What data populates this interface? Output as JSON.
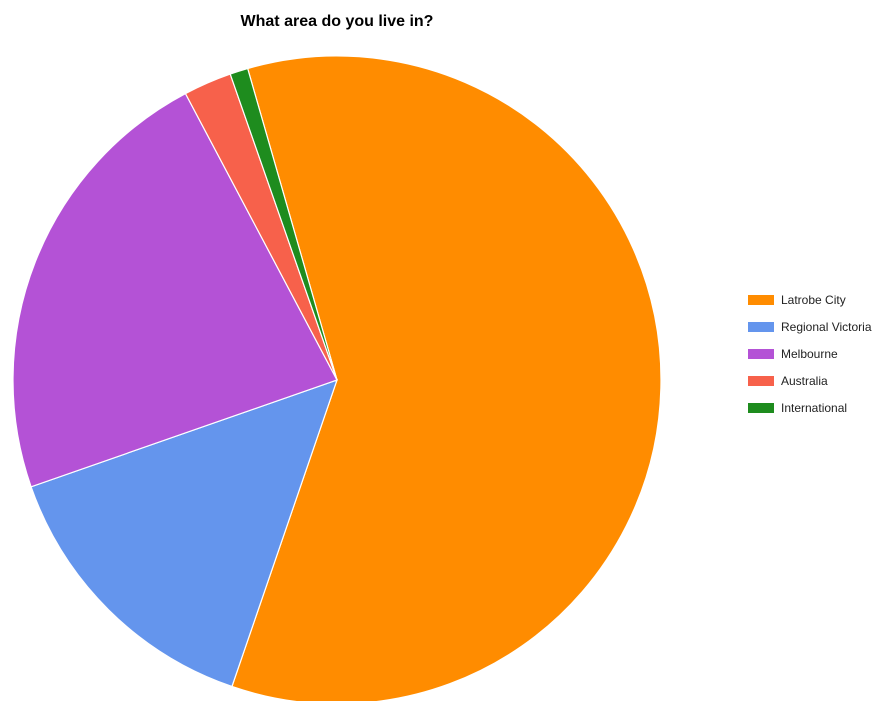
{
  "chart_data": {
    "type": "pie",
    "title": "What area do you live in?",
    "categories": [
      "Latrobe City",
      "Regional Victoria",
      "Melbourne",
      "Australia",
      "International"
    ],
    "values": [
      59.7,
      14.4,
      22.6,
      2.4,
      0.9
    ],
    "unit": "percent (estimated)",
    "colors": [
      "#ff8c00",
      "#6495ed",
      "#b452d6",
      "#f7614b",
      "#1e8c1e"
    ],
    "start_angle_deg": -16,
    "direction": "clockwise",
    "slice_border_color": "#ffffff",
    "legend_position": "right"
  }
}
